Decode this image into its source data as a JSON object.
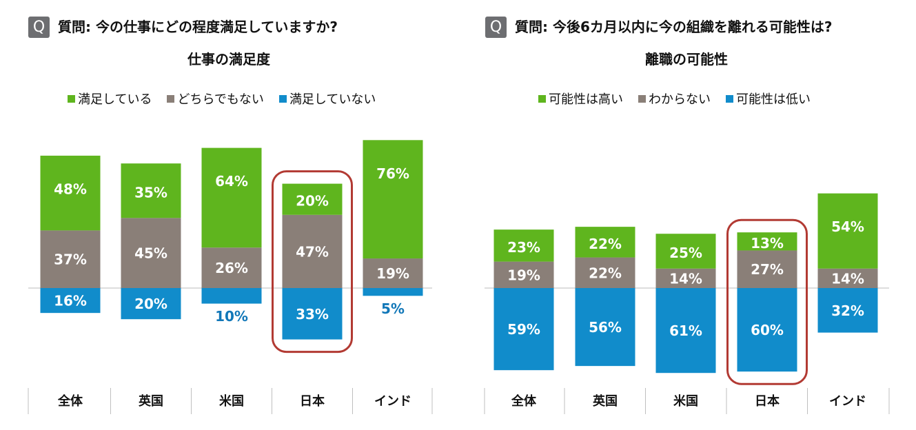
{
  "colors": {
    "satisfied": "#5fb51e",
    "neutral": "#8a7f78",
    "negative": "#118ccb",
    "highlight": "#b23a33",
    "baseline": "#bbbbbb",
    "negative_label": "#1177b8"
  },
  "left": {
    "q_icon": "Q",
    "question": "質問: 今の仕事にどの程度満足していますか?",
    "title": "仕事の満足度",
    "legend": [
      {
        "label": "満足している",
        "color": "#5fb51e"
      },
      {
        "label": "どちらでもない",
        "color": "#8a7f78"
      },
      {
        "label": "満足していない",
        "color": "#118ccb"
      }
    ]
  },
  "right": {
    "q_icon": "Q",
    "question": "質問: 今後6カ月以内に今の組織を離れる可能性は?",
    "title": "離職の可能性",
    "legend": [
      {
        "label": "可能性は高い",
        "color": "#5fb51e"
      },
      {
        "label": "わからない",
        "color": "#8a7f78"
      },
      {
        "label": "可能性は低い",
        "color": "#118ccb"
      }
    ]
  },
  "chart_data": [
    {
      "type": "bar",
      "stacked": "diverging",
      "title": "仕事の満足度",
      "categories": [
        "全体",
        "英国",
        "米国",
        "日本",
        "インド"
      ],
      "series": [
        {
          "name": "満足している",
          "values": [
            48,
            35,
            64,
            20,
            76
          ],
          "labels": [
            "48%",
            "35%",
            "64%",
            "20%",
            "76%"
          ]
        },
        {
          "name": "どちらでもない",
          "values": [
            37,
            45,
            26,
            47,
            19
          ],
          "labels": [
            "37%",
            "45%",
            "26%",
            "47%",
            "19%"
          ]
        },
        {
          "name": "満足していない",
          "values": [
            16,
            20,
            10,
            33,
            5
          ],
          "labels": [
            "16%",
            "20%",
            "10%",
            "33%",
            "5%"
          ]
        }
      ],
      "highlight_category": "日本"
    },
    {
      "type": "bar",
      "stacked": "diverging",
      "title": "離職の可能性",
      "categories": [
        "全体",
        "英国",
        "米国",
        "日本",
        "インド"
      ],
      "series": [
        {
          "name": "可能性は高い",
          "values": [
            23,
            22,
            25,
            13,
            54
          ],
          "labels": [
            "23%",
            "22%",
            "25%",
            "13%",
            "54%"
          ]
        },
        {
          "name": "わからない",
          "values": [
            19,
            22,
            14,
            27,
            14
          ],
          "labels": [
            "19%",
            "22%",
            "14%",
            "27%",
            "14%"
          ]
        },
        {
          "name": "可能性は低い",
          "values": [
            59,
            56,
            61,
            60,
            32
          ],
          "labels": [
            "59%",
            "56%",
            "61%",
            "60%",
            "32%"
          ]
        }
      ],
      "highlight_category": "日本"
    }
  ]
}
